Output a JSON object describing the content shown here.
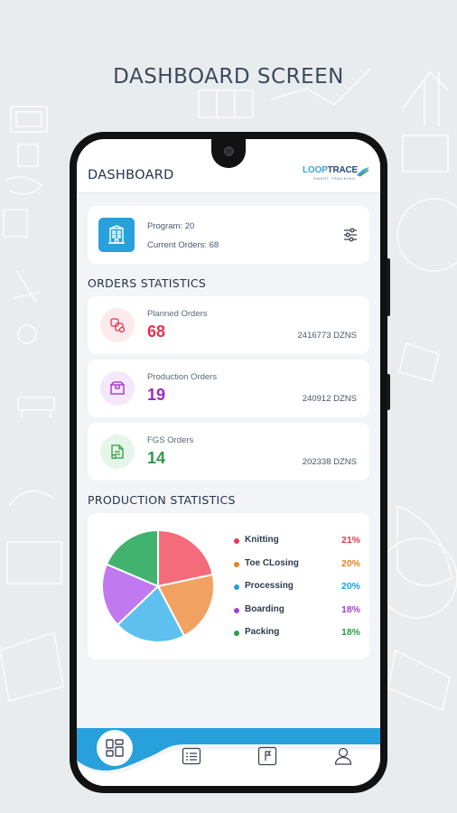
{
  "promo": {
    "title": "DASHBOARD SCREEN"
  },
  "app": {
    "title": "DASHBOARD",
    "logo": {
      "main_part1": "LOOP",
      "main_part2": "TRACE",
      "tagline": "SMART TRACKING"
    }
  },
  "program_card": {
    "program_label": "Program: 20",
    "current_orders_label": "Current Orders: 68",
    "icon": "building-icon",
    "filter_icon": "sliders-icon"
  },
  "orders_statistics": {
    "title": "ORDERS STATISTICS",
    "items": [
      {
        "label": "Planned Orders",
        "count": "68",
        "dzns": "2416773 DZNS",
        "color": "#e4334f",
        "icon_bg": "#fdeaec",
        "icon": "orders-icon"
      },
      {
        "label": "Production Orders",
        "count": "19",
        "dzns": "240912 DZNS",
        "color": "#9b29c2",
        "icon_bg": "#f4e8fb",
        "icon": "box-icon"
      },
      {
        "label": "FGS Orders",
        "count": "14",
        "dzns": "202338 DZNS",
        "color": "#2e9b45",
        "icon_bg": "#e6f5ea",
        "icon": "document-icon"
      }
    ]
  },
  "production_statistics": {
    "title": "PRODUCTION STATISTICS",
    "chart_data": {
      "type": "pie",
      "categories": [
        "Knitting",
        "Toe CLosing",
        "Processing",
        "Boarding",
        "Packing"
      ],
      "values": [
        21,
        20,
        20,
        18,
        18
      ],
      "value_labels": [
        "21%",
        "20%",
        "20%",
        "18%",
        "18%"
      ],
      "colors": [
        "#f46b7b",
        "#f1a262",
        "#5ec0ee",
        "#c079ef",
        "#42b36e"
      ],
      "label_colors": [
        "#e33b54",
        "#e8831f",
        "#1ea0d9",
        "#a53ed3",
        "#2e9b45"
      ],
      "legend_position": "right"
    }
  },
  "bottom_nav": {
    "items": [
      "dashboard-icon",
      "list-icon",
      "flag-icon",
      "user-icon"
    ],
    "accent": "#28a0dc"
  }
}
